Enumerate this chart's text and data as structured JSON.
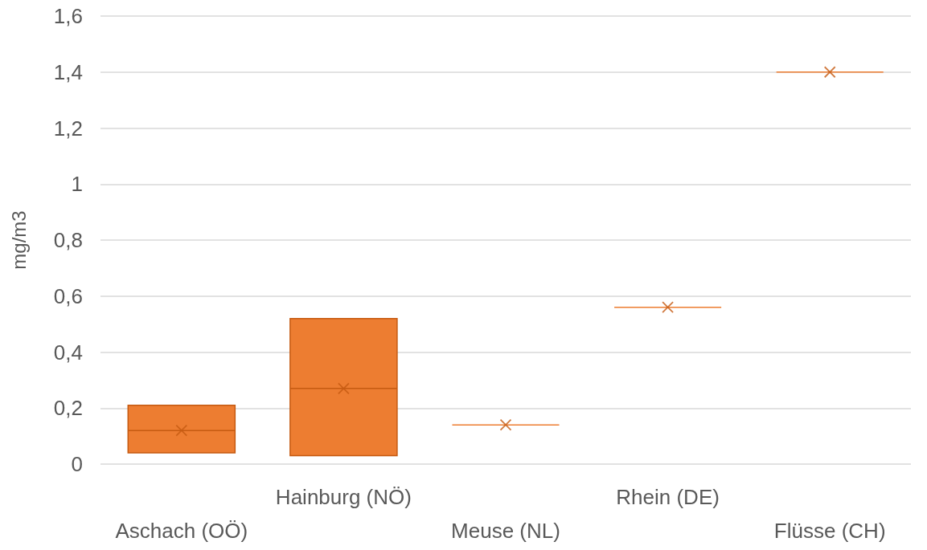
{
  "chart_data": {
    "type": "box",
    "ylabel": "mg/m3",
    "categories": [
      "Aschach (OÖ)",
      "Hainburg (NÖ)",
      "Meuse (NL)",
      "Rhein (DE)",
      "Flüsse (CH)"
    ],
    "series": [
      {
        "color": "#ed7d31",
        "boxes": [
          {
            "low": 0.04,
            "q1": 0.04,
            "median": 0.12,
            "q3": 0.21,
            "high": 0.21,
            "mean": 0.12
          },
          {
            "low": 0.03,
            "q1": 0.03,
            "median": 0.27,
            "q3": 0.52,
            "high": 0.52,
            "mean": 0.27
          },
          {
            "low": 0.14,
            "q1": 0.14,
            "median": 0.14,
            "q3": 0.14,
            "high": 0.14,
            "mean": 0.14
          },
          {
            "low": 0.56,
            "q1": 0.56,
            "median": 0.56,
            "q3": 0.56,
            "high": 0.56,
            "mean": 0.56
          },
          {
            "low": 1.4,
            "q1": 1.4,
            "median": 1.4,
            "q3": 1.4,
            "high": 1.4,
            "mean": 1.4
          }
        ]
      }
    ],
    "ylim": [
      0,
      1.6
    ],
    "yticks": [
      0,
      {
        "value": 0.2,
        "label": "0,2"
      },
      {
        "value": 0.4,
        "label": "0,4"
      },
      {
        "value": 0.6,
        "label": "0,6"
      },
      {
        "value": 0.8,
        "label": "0,8"
      },
      1,
      {
        "value": 1.2,
        "label": "1,2"
      },
      {
        "value": 1.4,
        "label": "1,4"
      },
      {
        "value": 1.6,
        "label": "1,6"
      }
    ],
    "grid": "y",
    "marker": "cross"
  }
}
